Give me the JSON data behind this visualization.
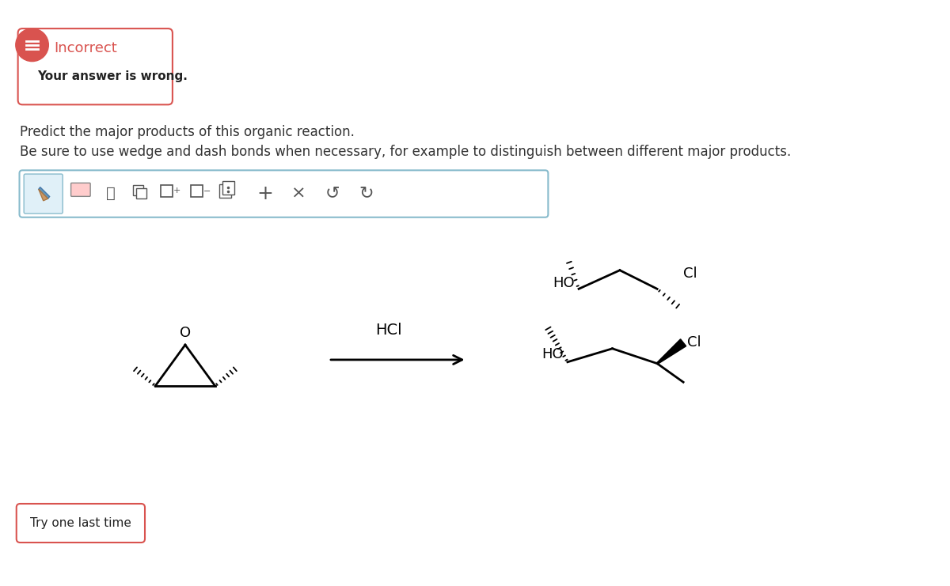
{
  "bg_color": "#ffffff",
  "incorrect_box": {
    "text_title": "Incorrect",
    "text_body": "Your answer is wrong.",
    "border_color": "#d9534f",
    "title_color": "#d9534f",
    "body_color": "#222222",
    "icon_bg": "#d9534f"
  },
  "instruction1": "Predict the major products of this organic reaction.",
  "instruction2": "Be sure to use wedge and dash bonds when necessary, for example to distinguish between different major products.",
  "toolbar_border": "#88bbcc",
  "toolbar_fill": "#f0f8ff",
  "pencil_highlight": "#e0f0f8",
  "reagent_label": "HCl",
  "arrow_color": "#000000",
  "try_button_text": "Try one last time",
  "try_button_border": "#d9534f",
  "mol_line_color": "#000000",
  "label_color": "#000000"
}
